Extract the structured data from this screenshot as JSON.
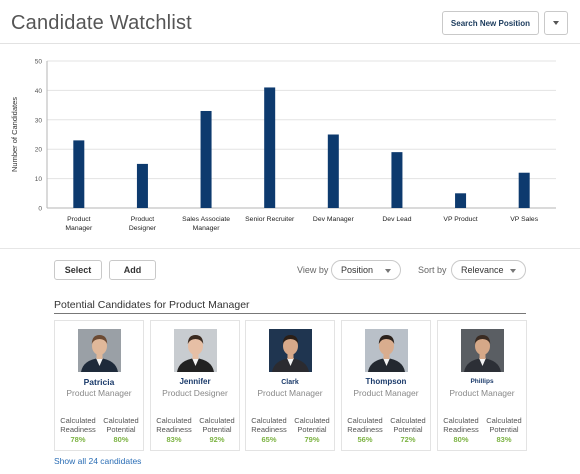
{
  "header": {
    "title": "Candidate Watchlist",
    "search_button": "Search New Position"
  },
  "chart_data": {
    "type": "bar",
    "ylabel": "Number of Candidates",
    "ylim": [
      0,
      50
    ],
    "yticks": [
      0,
      10,
      20,
      30,
      40,
      50
    ],
    "categories": [
      [
        "Product",
        "Manager"
      ],
      [
        "Product",
        "Designer"
      ],
      [
        "Sales Associate",
        "Manager"
      ],
      [
        "Senior Recruiter"
      ],
      [
        "Dev Manager"
      ],
      [
        "Dev Lead"
      ],
      [
        "VP Product"
      ],
      [
        "VP Sales"
      ]
    ],
    "values": [
      23,
      15,
      33,
      41,
      25,
      19,
      5,
      12
    ],
    "bar_color": "#0d3a6e",
    "grid": true
  },
  "toolbar": {
    "select_label": "Select",
    "add_label": "Add",
    "view_by_label": "View by",
    "view_by_value": "Position",
    "sort_by_label": "Sort by",
    "sort_by_value": "Relevance"
  },
  "section": {
    "title": "Potential Candidates for Product Manager",
    "show_all": "Show all 24 candidates"
  },
  "candidates": [
    {
      "name": "Patricia",
      "role": "Product Manager",
      "readiness_label": "Calculated Readiness",
      "readiness": "78%",
      "potential_label": "Calculated Potential",
      "potential": "80%",
      "avatar_bg": "#9aa0a6",
      "suit": "#1e2a3a",
      "skin": "#e0b89a",
      "hair": "#6b4a33"
    },
    {
      "name": "Jennifer",
      "role": "Product Designer",
      "readiness_label": "Calculated Readiness",
      "readiness": "83%",
      "potential_label": "Calculated Potential",
      "potential": "92%",
      "avatar_bg": "#c8ccd0",
      "suit": "#222222",
      "skin": "#e6bfa5",
      "hair": "#3a2a20"
    },
    {
      "name": "Clark",
      "role": "Product Manager",
      "readiness_label": "Calculated Readiness",
      "readiness": "65%",
      "potential_label": "Calculated Potential",
      "potential": "79%",
      "avatar_bg": "#1f3550",
      "suit": "#2b2b30",
      "skin": "#d7a98a",
      "hair": "#2a1f18"
    },
    {
      "name": "Thompson",
      "role": "Product Manager",
      "readiness_label": "Calculated Readiness",
      "readiness": "56%",
      "potential_label": "Calculated Potential",
      "potential": "72%",
      "avatar_bg": "#b9c0c8",
      "suit": "#23282f",
      "skin": "#d9ad8e",
      "hair": "#2b211b"
    },
    {
      "name": "Phillips",
      "role": "Product Manager",
      "readiness_label": "Calculated Readiness",
      "readiness": "80%",
      "potential_label": "Calculated Potential",
      "potential": "83%",
      "avatar_bg": "#5a5e63",
      "suit": "#2c2f36",
      "skin": "#d5a888",
      "hair": "#3a2b22"
    }
  ]
}
